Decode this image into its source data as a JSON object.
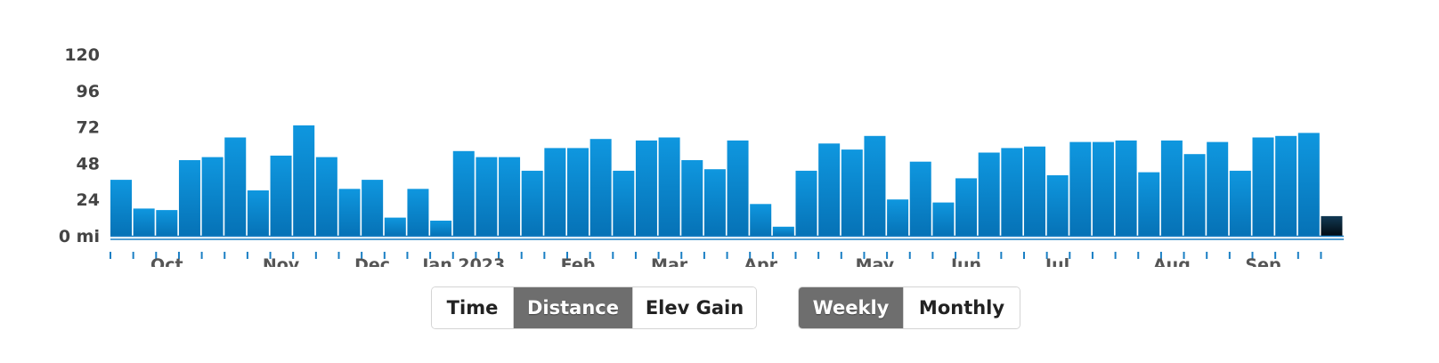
{
  "chart_data": {
    "type": "bar",
    "y_unit": "mi",
    "ylim": [
      0,
      120
    ],
    "y_ticks": [
      "0 mi",
      "24",
      "48",
      "72",
      "96",
      "120"
    ],
    "y_tick_values": [
      0,
      24,
      48,
      72,
      96,
      120
    ],
    "grid": false,
    "x_labels": [
      "Oct",
      "Nov",
      "Dec",
      "Jan 2023",
      "Feb",
      "Mar",
      "Apr",
      "May",
      "Jun",
      "Jul",
      "Aug",
      "Sep"
    ],
    "bar_color": "#0d8fd6",
    "current_bar_color": "#0b2233",
    "values": [
      37,
      18,
      17,
      50,
      52,
      65,
      30,
      53,
      73,
      52,
      31,
      37,
      12,
      31,
      10,
      56,
      52,
      52,
      43,
      58,
      58,
      64,
      43,
      63,
      65,
      50,
      44,
      63,
      21,
      6,
      43,
      61,
      57,
      66,
      24,
      49,
      22,
      38,
      55,
      58,
      59,
      40,
      62,
      62,
      63,
      42,
      63,
      54,
      62,
      43,
      65,
      66,
      68,
      13
    ]
  },
  "controls": {
    "metric": {
      "time": "Time",
      "distance": "Distance",
      "elev_gain": "Elev Gain",
      "selected": "Distance"
    },
    "period": {
      "weekly": "Weekly",
      "monthly": "Monthly",
      "selected": "Weekly"
    }
  }
}
